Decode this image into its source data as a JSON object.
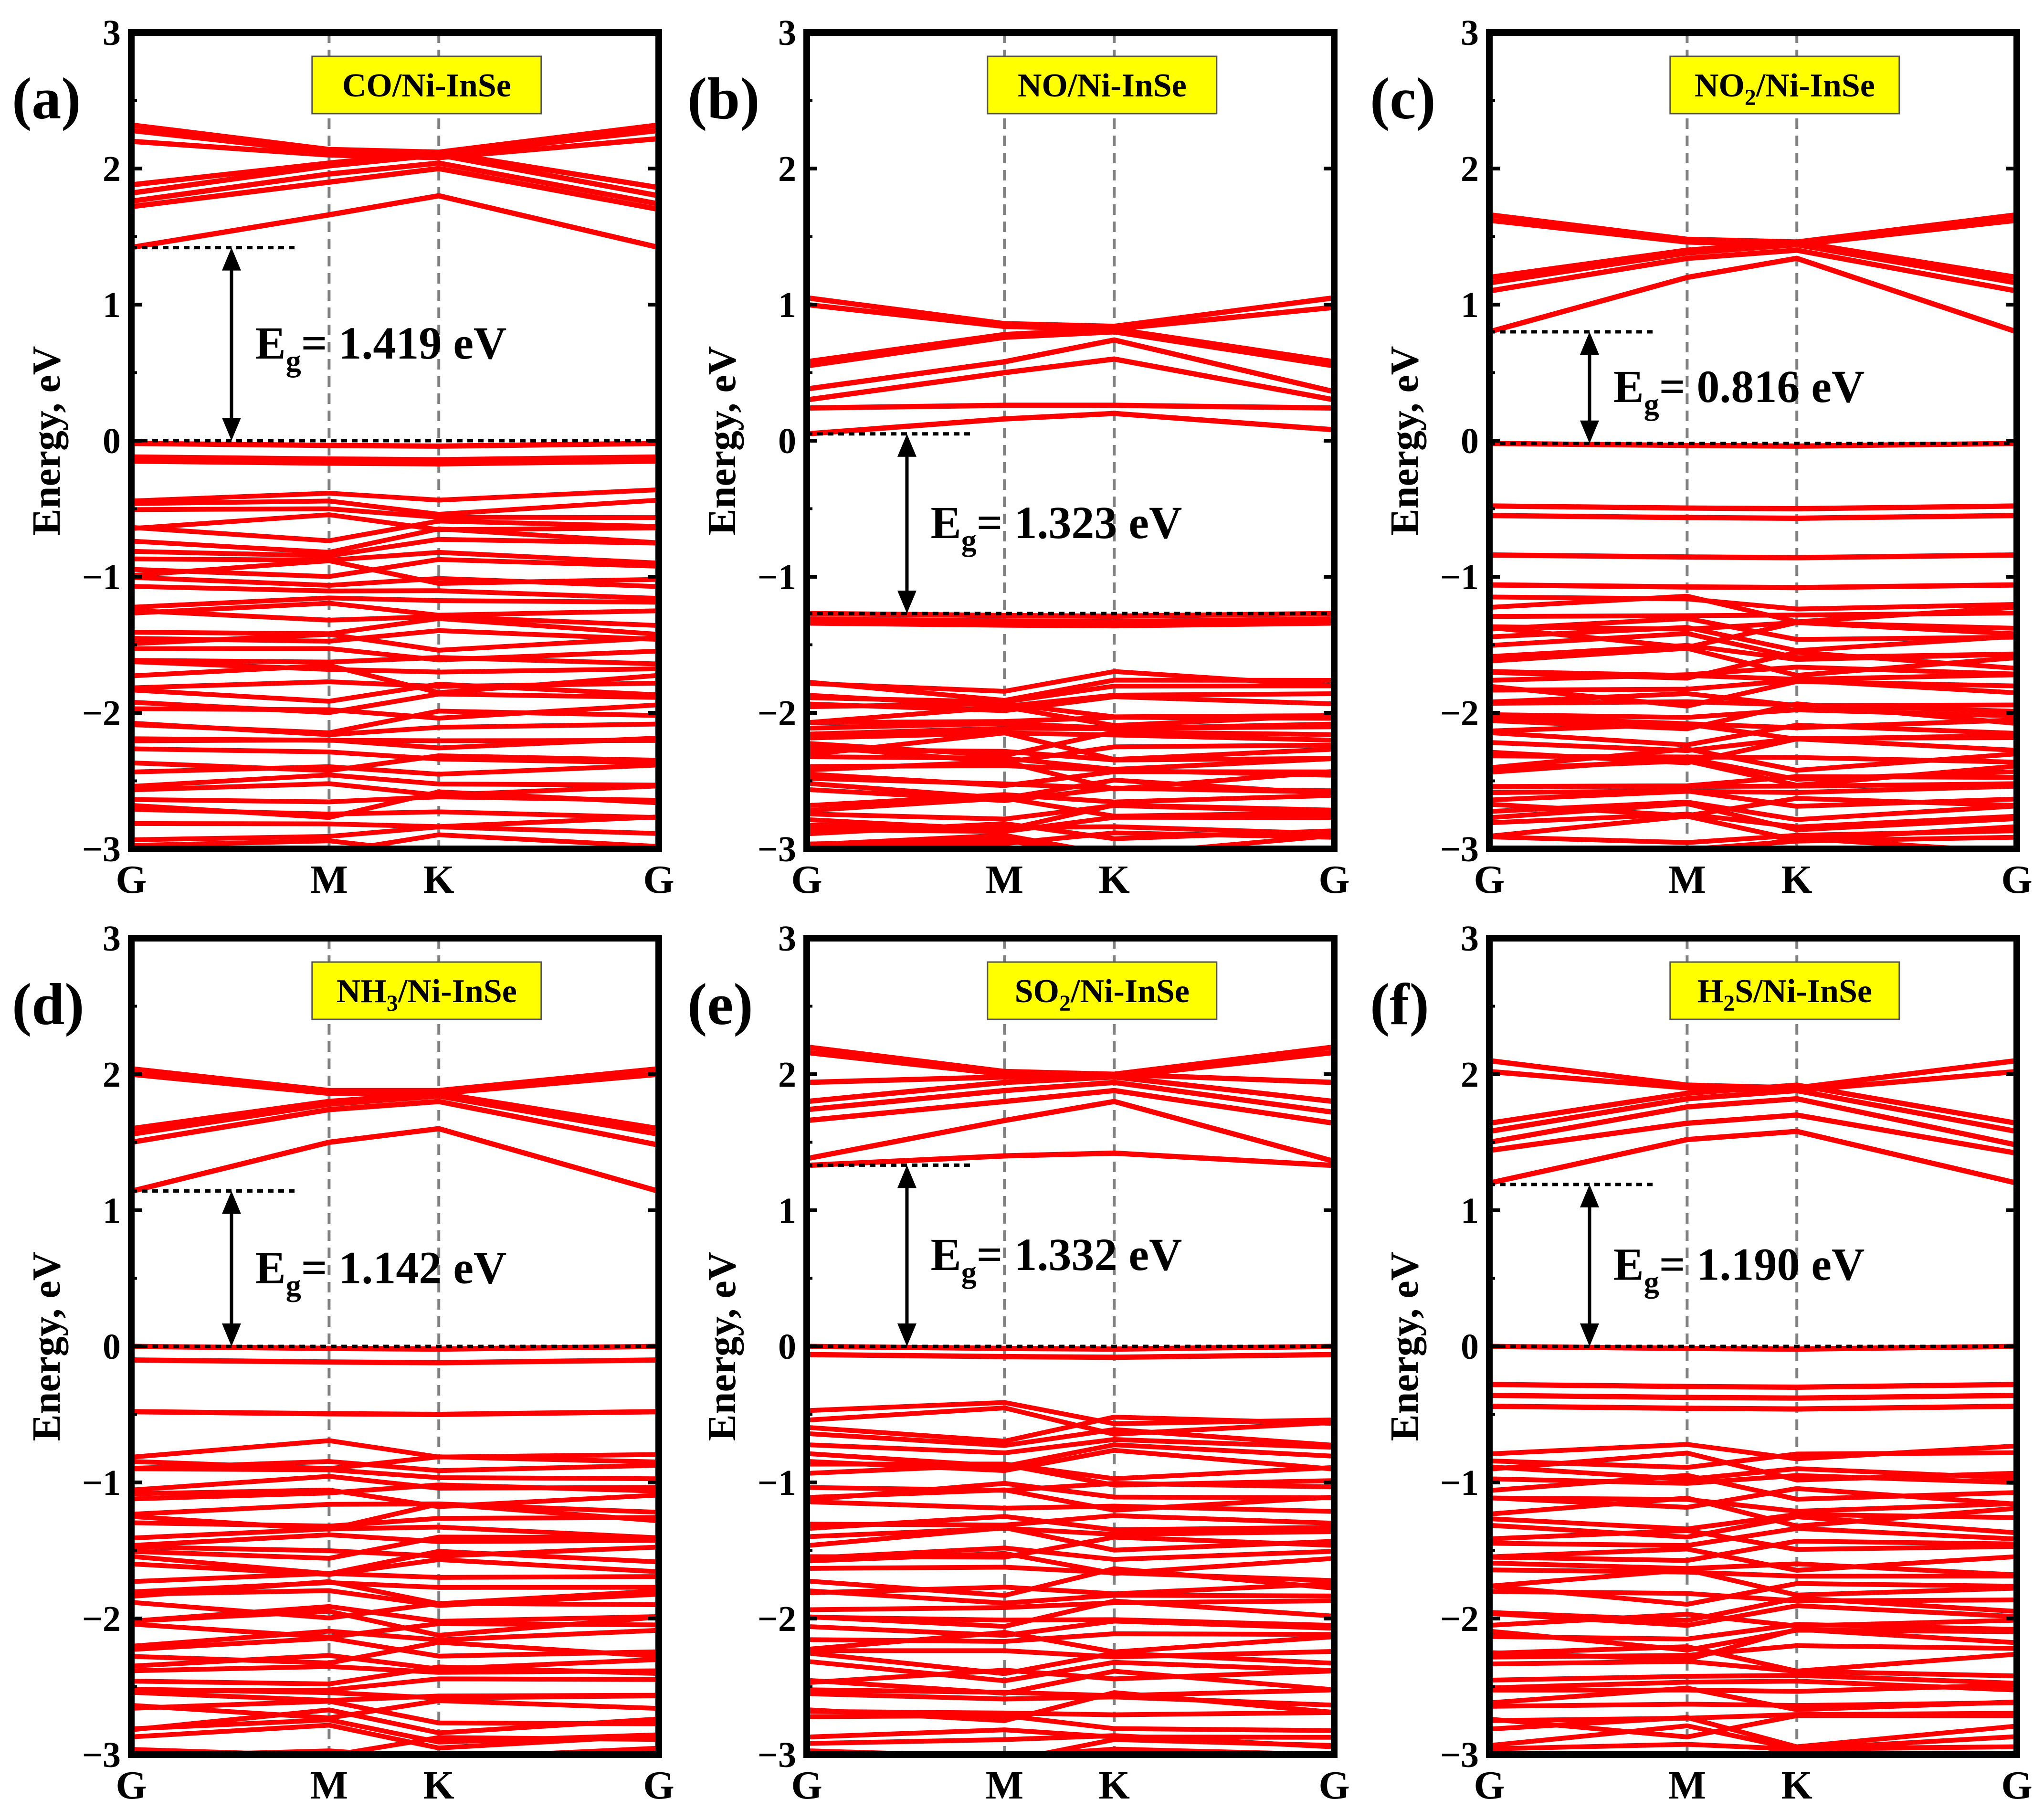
{
  "chart_data": [
    {
      "type": "line",
      "panel_label": "(a)",
      "title": "CO/Ni-InSe",
      "title_main": "CO/Ni-InSe",
      "title_sub": "",
      "title_tail": "",
      "ylabel": "Energy, eV",
      "xlabel": "",
      "ylim": [
        -3,
        3
      ],
      "yticks": [
        "3",
        "2",
        "1",
        "0",
        "−1",
        "−2",
        "−3"
      ],
      "k_points": [
        "G",
        "M",
        "K",
        "G"
      ],
      "k_positions": [
        0,
        0.375,
        0.583,
        1
      ],
      "cbm": 1.419,
      "vbm": 0.0,
      "eg_prefix": "E",
      "eg_sub": "g",
      "eg_value": "= 1.419 eV",
      "series_color": "#ff0000",
      "conduction_bands": [
        [
          2.32,
          2.14,
          2.12,
          2.32
        ],
        [
          2.28,
          2.12,
          2.1,
          2.28
        ],
        [
          2.2,
          2.1,
          2.08,
          2.22
        ],
        [
          1.88,
          2.04,
          2.12,
          1.86
        ],
        [
          1.82,
          2.02,
          2.1,
          1.8
        ],
        [
          1.76,
          1.96,
          2.04,
          1.74
        ],
        [
          1.72,
          1.9,
          2.0,
          1.7
        ],
        [
          1.42,
          1.66,
          1.8,
          1.42
        ]
      ],
      "valence_flat": [
        -0.02,
        -0.12,
        -0.15
      ],
      "valence_top": -0.42,
      "valence_bottom": -3.0,
      "valence_count": 42
    },
    {
      "type": "line",
      "panel_label": "(b)",
      "title": "NO/Ni-InSe",
      "title_main": "NO/Ni-InSe",
      "title_sub": "",
      "title_tail": "",
      "ylabel": "Energy, eV",
      "xlabel": "",
      "ylim": [
        -3,
        3
      ],
      "yticks": [
        "3",
        "2",
        "1",
        "0",
        "−1",
        "−2",
        "−3"
      ],
      "k_points": [
        "G",
        "M",
        "K",
        "G"
      ],
      "k_positions": [
        0,
        0.375,
        0.583,
        1
      ],
      "cbm": 0.05,
      "vbm": -1.27,
      "eg_prefix": "E",
      "eg_sub": "g",
      "eg_value": "= 1.323 eV",
      "series_color": "#ff0000",
      "conduction_bands": [
        [
          1.05,
          0.86,
          0.84,
          1.05
        ],
        [
          1.0,
          0.84,
          0.82,
          0.98
        ],
        [
          0.58,
          0.78,
          0.82,
          0.58
        ],
        [
          0.55,
          0.76,
          0.8,
          0.55
        ],
        [
          0.38,
          0.58,
          0.74,
          0.36
        ],
        [
          0.3,
          0.5,
          0.6,
          0.3
        ],
        [
          0.24,
          0.26,
          0.26,
          0.24
        ],
        [
          0.05,
          0.16,
          0.2,
          0.08
        ]
      ],
      "valence_flat": [
        -1.27,
        -1.31,
        -1.34
      ],
      "valence_top": -1.78,
      "valence_bottom": -3.0,
      "valence_count": 32
    },
    {
      "type": "line",
      "panel_label": "(c)",
      "title": "NO2/Ni-InSe",
      "title_main": "NO",
      "title_sub": "2",
      "title_tail": "/Ni-InSe",
      "ylabel": "Energy, eV",
      "xlabel": "",
      "ylim": [
        -3,
        3
      ],
      "yticks": [
        "3",
        "2",
        "1",
        "0",
        "−1",
        "−2",
        "−3"
      ],
      "k_points": [
        "G",
        "M",
        "K",
        "G"
      ],
      "k_positions": [
        0,
        0.375,
        0.583,
        1
      ],
      "cbm": 0.8,
      "vbm": -0.02,
      "eg_prefix": "E",
      "eg_sub": "g",
      "eg_value": "= 0.816 eV",
      "series_color": "#ff0000",
      "conduction_bands": [
        [
          1.66,
          1.48,
          1.46,
          1.66
        ],
        [
          1.62,
          1.46,
          1.44,
          1.62
        ],
        [
          1.2,
          1.4,
          1.46,
          1.2
        ],
        [
          1.16,
          1.38,
          1.44,
          1.16
        ],
        [
          1.1,
          1.34,
          1.4,
          1.1
        ],
        [
          0.8,
          1.2,
          1.34,
          0.8
        ]
      ],
      "valence_flat": [
        -0.02,
        -0.48,
        -0.55,
        -0.84,
        -1.06
      ],
      "valence_top": -1.2,
      "valence_bottom": -3.0,
      "valence_count": 40
    },
    {
      "type": "line",
      "panel_label": "(d)",
      "title": "NH3/Ni-InSe",
      "title_main": "NH",
      "title_sub": "3",
      "title_tail": "/Ni-InSe",
      "ylabel": "Energy, eV",
      "xlabel": "",
      "ylim": [
        -3,
        3
      ],
      "yticks": [
        "3",
        "2",
        "1",
        "0",
        "−1",
        "−2",
        "−3"
      ],
      "k_points": [
        "G",
        "M",
        "K",
        "G"
      ],
      "k_positions": [
        0,
        0.375,
        0.583,
        1
      ],
      "cbm": 1.142,
      "vbm": 0.0,
      "eg_prefix": "E",
      "eg_sub": "g",
      "eg_value": "= 1.142 eV",
      "series_color": "#ff0000",
      "conduction_bands": [
        [
          2.04,
          1.88,
          1.88,
          2.04
        ],
        [
          2.0,
          1.86,
          1.86,
          2.0
        ],
        [
          1.6,
          1.8,
          1.86,
          1.6
        ],
        [
          1.56,
          1.78,
          1.84,
          1.56
        ],
        [
          1.5,
          1.74,
          1.8,
          1.48
        ],
        [
          1.14,
          1.5,
          1.6,
          1.14
        ]
      ],
      "valence_flat": [
        0.0,
        -0.1,
        -0.48
      ],
      "valence_top": -0.78,
      "valence_bottom": -3.0,
      "valence_count": 40
    },
    {
      "type": "line",
      "panel_label": "(e)",
      "title": "SO2/Ni-InSe",
      "title_main": "SO",
      "title_sub": "2",
      "title_tail": "/Ni-InSe",
      "ylabel": "Energy, eV",
      "xlabel": "",
      "ylim": [
        -3,
        3
      ],
      "yticks": [
        "3",
        "2",
        "1",
        "0",
        "−1",
        "−2",
        "−3"
      ],
      "k_points": [
        "G",
        "M",
        "K",
        "G"
      ],
      "k_positions": [
        0,
        0.375,
        0.583,
        1
      ],
      "cbm": 1.332,
      "vbm": 0.0,
      "eg_prefix": "E",
      "eg_sub": "g",
      "eg_value": "= 1.332 eV",
      "series_color": "#ff0000",
      "conduction_bands": [
        [
          2.2,
          2.02,
          2.0,
          2.2
        ],
        [
          2.16,
          2.0,
          1.98,
          2.16
        ],
        [
          1.94,
          1.98,
          2.0,
          1.94
        ],
        [
          1.8,
          1.94,
          1.98,
          1.8
        ],
        [
          1.74,
          1.88,
          1.94,
          1.72
        ],
        [
          1.66,
          1.8,
          1.88,
          1.64
        ],
        [
          1.38,
          1.66,
          1.8,
          1.36
        ],
        [
          1.33,
          1.4,
          1.42,
          1.33
        ]
      ],
      "valence_flat": [
        0.0,
        -0.06
      ],
      "valence_top": -0.5,
      "valence_bottom": -3.0,
      "valence_count": 44
    },
    {
      "type": "line",
      "panel_label": "(f)",
      "title": "H2S/Ni-InSe",
      "title_main": "H",
      "title_sub": "2",
      "title_tail": "S/Ni-InSe",
      "ylabel": "Energy, eV",
      "xlabel": "",
      "ylim": [
        -3,
        3
      ],
      "yticks": [
        "3",
        "2",
        "1",
        "0",
        "−1",
        "−2",
        "−3"
      ],
      "k_points": [
        "G",
        "M",
        "K",
        "G"
      ],
      "k_positions": [
        0,
        0.375,
        0.583,
        1
      ],
      "cbm": 1.19,
      "vbm": 0.0,
      "eg_prefix": "E",
      "eg_sub": "g",
      "eg_value": "= 1.190 eV",
      "series_color": "#ff0000",
      "conduction_bands": [
        [
          2.1,
          1.92,
          1.9,
          2.1
        ],
        [
          2.02,
          1.9,
          1.88,
          2.02
        ],
        [
          1.64,
          1.86,
          1.92,
          1.64
        ],
        [
          1.58,
          1.82,
          1.88,
          1.58
        ],
        [
          1.5,
          1.76,
          1.82,
          1.48
        ],
        [
          1.44,
          1.64,
          1.7,
          1.42
        ],
        [
          1.2,
          1.52,
          1.58,
          1.2
        ]
      ],
      "valence_flat": [
        0.0,
        -0.28,
        -0.36,
        -0.44
      ],
      "valence_top": -0.76,
      "valence_bottom": -3.0,
      "valence_count": 40
    }
  ]
}
